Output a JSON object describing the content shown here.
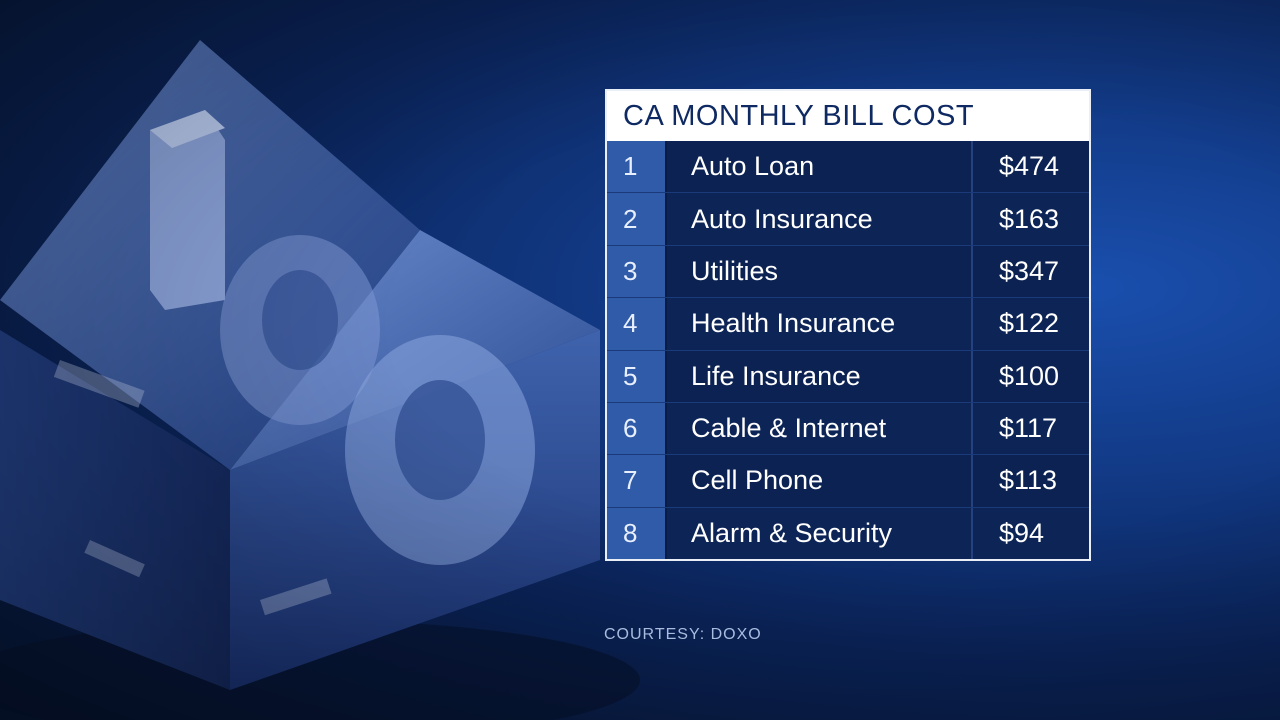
{
  "table": {
    "title": "CA MONTHLY BILL COST",
    "rows": [
      {
        "rank": "1",
        "name": "Auto Loan",
        "cost": "$474"
      },
      {
        "rank": "2",
        "name": "Auto Insurance",
        "cost": "$163"
      },
      {
        "rank": "3",
        "name": "Utilities",
        "cost": "$347"
      },
      {
        "rank": "4",
        "name": "Health Insurance",
        "cost": "$122"
      },
      {
        "rank": "5",
        "name": "Life Insurance",
        "cost": "$100"
      },
      {
        "rank": "6",
        "name": "Cable & Internet",
        "cost": "$117"
      },
      {
        "rank": "7",
        "name": "Cell Phone",
        "cost": "$113"
      },
      {
        "rank": "8",
        "name": "Alarm & Security",
        "cost": "$94"
      }
    ]
  },
  "courtesy": "COURTESY: DOXO",
  "colors": {
    "background": "#123a86",
    "rank_column": "#2f5ba8",
    "row_fill": "#0b2252",
    "title_text": "#0f2a63"
  }
}
